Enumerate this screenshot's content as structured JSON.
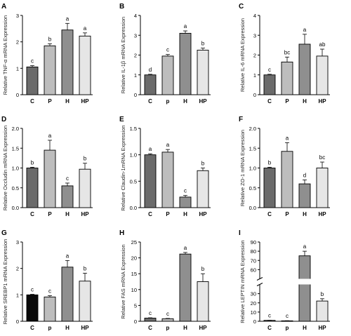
{
  "colors": {
    "C": "#6b6b6b",
    "P": "#bdbdbd",
    "H": "#8f8f8f",
    "HP": "#e6e6e6",
    "G_C": "#0a0a0a"
  },
  "chart_data": [
    {
      "panel": "A",
      "type": "bar",
      "ylabel": "Relative TNF-α mRNA Expression",
      "categories": [
        "C",
        "P",
        "H",
        "HP"
      ],
      "values": [
        1.05,
        1.85,
        2.45,
        2.22
      ],
      "errors": [
        0.05,
        0.08,
        0.25,
        0.12
      ],
      "sig": [
        "c",
        "b",
        "a",
        "a"
      ],
      "ylim": [
        0,
        3
      ],
      "yticks": [
        "0",
        "1",
        "2",
        "3"
      ],
      "ytick_values": [
        0,
        1,
        2,
        3
      ],
      "colors": [
        "#6b6b6b",
        "#bdbdbd",
        "#8f8f8f",
        "#e6e6e6"
      ]
    },
    {
      "panel": "B",
      "type": "bar",
      "ylabel": "Relative IL-1β mRNA Expression",
      "categories": [
        "C",
        "p",
        "H",
        "HP"
      ],
      "values": [
        1.0,
        1.95,
        3.1,
        2.25
      ],
      "errors": [
        0.03,
        0.08,
        0.12,
        0.1
      ],
      "sig": [
        "d",
        "c",
        "a",
        "b"
      ],
      "ylim": [
        0,
        4
      ],
      "yticks": [
        "0",
        "1",
        "2",
        "3",
        "4"
      ],
      "ytick_values": [
        0,
        1,
        2,
        3,
        4
      ],
      "colors": [
        "#6b6b6b",
        "#bdbdbd",
        "#8f8f8f",
        "#e6e6e6"
      ]
    },
    {
      "panel": "C",
      "type": "bar",
      "ylabel": "Relative IL-6 mRNA Expression",
      "categories": [
        "C",
        "P",
        "H",
        "HP"
      ],
      "values": [
        1.0,
        1.65,
        2.55,
        1.95
      ],
      "errors": [
        0.03,
        0.25,
        0.5,
        0.35
      ],
      "sig": [
        "c",
        "bc",
        "a",
        "ab"
      ],
      "ylim": [
        0,
        4
      ],
      "yticks": [
        "0",
        "1",
        "2",
        "3",
        "4"
      ],
      "ytick_values": [
        0,
        1,
        2,
        3,
        4
      ],
      "colors": [
        "#6b6b6b",
        "#bdbdbd",
        "#8f8f8f",
        "#e6e6e6"
      ]
    },
    {
      "panel": "D",
      "type": "bar",
      "ylabel": "Relative Occludin mRNA Expression",
      "categories": [
        "C",
        "P",
        "H",
        "HP"
      ],
      "values": [
        1.0,
        1.45,
        0.55,
        0.97
      ],
      "errors": [
        0.02,
        0.25,
        0.07,
        0.15
      ],
      "sig": [
        "b",
        "a",
        "c",
        "b"
      ],
      "ylim": [
        0,
        2
      ],
      "yticks": [
        "0.0",
        "0.5",
        "1.0",
        "1.5",
        "2.0"
      ],
      "ytick_values": [
        0,
        0.5,
        1,
        1.5,
        2
      ],
      "colors": [
        "#6b6b6b",
        "#bdbdbd",
        "#8f8f8f",
        "#e6e6e6"
      ]
    },
    {
      "panel": "E",
      "type": "bar",
      "ylabel": "Relative Claudin-1mRNA Expression",
      "categories": [
        "C",
        "P",
        "H",
        "HP"
      ],
      "values": [
        1.0,
        1.05,
        0.2,
        0.7
      ],
      "errors": [
        0.02,
        0.05,
        0.03,
        0.05
      ],
      "sig": [
        "a",
        "a",
        "c",
        "b"
      ],
      "ylim": [
        0,
        1.5
      ],
      "yticks": [
        "0.0",
        "0.5",
        "1.0",
        "1.5"
      ],
      "ytick_values": [
        0,
        0.5,
        1,
        1.5
      ],
      "colors": [
        "#6b6b6b",
        "#bdbdbd",
        "#8f8f8f",
        "#e6e6e6"
      ]
    },
    {
      "panel": "F",
      "type": "bar",
      "ylabel": "Relative ZO-1 mRNA Expression",
      "categories": [
        "C",
        "P",
        "H",
        "HP"
      ],
      "values": [
        1.0,
        1.42,
        0.6,
        1.0
      ],
      "errors": [
        0.02,
        0.22,
        0.1,
        0.15
      ],
      "sig": [
        "b",
        "a",
        "d",
        "bc"
      ],
      "ylim": [
        0,
        2
      ],
      "yticks": [
        "0.0",
        "0.5",
        "1.0",
        "1.5",
        "2.0"
      ],
      "ytick_values": [
        0,
        0.5,
        1,
        1.5,
        2
      ],
      "colors": [
        "#6b6b6b",
        "#bdbdbd",
        "#8f8f8f",
        "#e6e6e6"
      ]
    },
    {
      "panel": "G",
      "type": "bar",
      "ylabel": "Relative SREBP1 mRNA Expression",
      "categories": [
        "C",
        "p",
        "H",
        "HP"
      ],
      "values": [
        1.0,
        0.92,
        2.05,
        1.52
      ],
      "errors": [
        0.02,
        0.05,
        0.25,
        0.3
      ],
      "sig": [
        "c",
        "c",
        "a",
        "b"
      ],
      "ylim": [
        0,
        3
      ],
      "yticks": [
        "0",
        "1",
        "2",
        "3"
      ],
      "ytick_values": [
        0,
        1,
        2,
        3
      ],
      "colors": [
        "#0a0a0a",
        "#bdbdbd",
        "#8f8f8f",
        "#e6e6e6"
      ]
    },
    {
      "panel": "H",
      "type": "bar",
      "ylabel": "Relative FAS mRNA Expression",
      "categories": [
        "C",
        "p",
        "H",
        "HP"
      ],
      "values": [
        1.0,
        0.8,
        21.2,
        12.5
      ],
      "errors": [
        0.1,
        0.1,
        0.5,
        2.5
      ],
      "sig": [
        "c",
        "c",
        "a",
        "b"
      ],
      "ylim": [
        0,
        25
      ],
      "yticks": [
        "0",
        "5",
        "10",
        "15",
        "20",
        "25"
      ],
      "ytick_values": [
        0,
        5,
        10,
        15,
        20,
        25
      ],
      "colors": [
        "#6b6b6b",
        "#bdbdbd",
        "#8f8f8f",
        "#e6e6e6"
      ]
    },
    {
      "panel": "I",
      "type": "bar",
      "ylabel": "Relative LEPTIN mRNA Expression",
      "categories": [
        "C",
        "p",
        "H",
        "HP"
      ],
      "values": [
        1.0,
        0.5,
        75,
        22
      ],
      "errors": [
        0.1,
        0.1,
        5,
        2.5
      ],
      "sig": [
        "c",
        "c",
        "a",
        "b"
      ],
      "ylim": [
        0,
        90
      ],
      "axis_break": [
        40,
        50
      ],
      "yticks": [
        "0",
        "10",
        "20",
        "30",
        "60",
        "70",
        "80",
        "90"
      ],
      "ytick_values": [
        0,
        10,
        20,
        30,
        60,
        70,
        80,
        90
      ],
      "colors": [
        "#6b6b6b",
        "#bdbdbd",
        "#8f8f8f",
        "#e6e6e6"
      ]
    }
  ]
}
